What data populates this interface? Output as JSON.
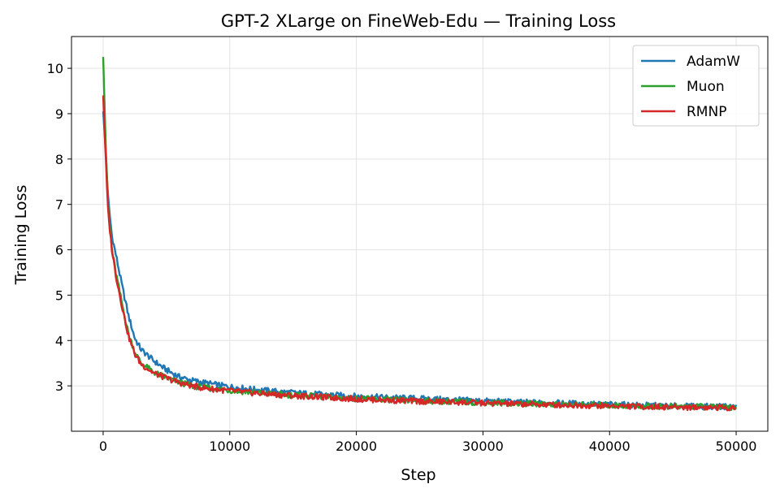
{
  "chart_data": {
    "type": "line",
    "title": "GPT-2 XLarge on FineWeb-Edu — Training Loss",
    "xlabel": "Step",
    "ylabel": "Training Loss",
    "xlim": [
      -2500,
      52500
    ],
    "ylim": [
      2.0,
      10.7
    ],
    "xticks": [
      0,
      10000,
      20000,
      30000,
      40000,
      50000
    ],
    "xtick_labels": [
      "0",
      "10000",
      "20000",
      "30000",
      "40000",
      "50000"
    ],
    "yticks": [
      3,
      4,
      5,
      6,
      7,
      8,
      9,
      10
    ],
    "ytick_labels": [
      "3",
      "4",
      "5",
      "6",
      "7",
      "8",
      "9",
      "10"
    ],
    "grid": true,
    "legend_position": "top-right",
    "series": [
      {
        "name": "AdamW",
        "color": "#1f77b4",
        "x": [
          0,
          200,
          400,
          700,
          1000,
          1500,
          2000,
          2500,
          3000,
          4000,
          5000,
          6000,
          7000,
          8000,
          9000,
          10000,
          12000,
          14000,
          16000,
          18000,
          20000,
          22000,
          25000,
          28000,
          30000,
          33000,
          36000,
          40000,
          43000,
          46000,
          50000
        ],
        "y": [
          9.05,
          8.2,
          7.1,
          6.3,
          5.9,
          5.2,
          4.55,
          4.05,
          3.8,
          3.55,
          3.35,
          3.2,
          3.12,
          3.07,
          3.02,
          2.98,
          2.92,
          2.87,
          2.83,
          2.8,
          2.77,
          2.75,
          2.72,
          2.69,
          2.67,
          2.64,
          2.62,
          2.59,
          2.57,
          2.55,
          2.54
        ]
      },
      {
        "name": "Muon",
        "color": "#2ca02c",
        "x": [
          0,
          200,
          400,
          700,
          1000,
          1500,
          2000,
          2500,
          3000,
          4000,
          5000,
          6000,
          7000,
          8000,
          9000,
          10000,
          12000,
          14000,
          16000,
          18000,
          20000,
          22000,
          25000,
          28000,
          30000,
          33000,
          36000,
          40000,
          43000,
          46000,
          50000
        ],
        "y": [
          10.25,
          8.3,
          6.9,
          6.0,
          5.5,
          4.8,
          4.15,
          3.75,
          3.5,
          3.3,
          3.18,
          3.08,
          3.0,
          2.96,
          2.93,
          2.9,
          2.85,
          2.81,
          2.78,
          2.75,
          2.72,
          2.7,
          2.67,
          2.65,
          2.63,
          2.61,
          2.59,
          2.57,
          2.55,
          2.54,
          2.53
        ]
      },
      {
        "name": "RMNP",
        "color": "#d62728",
        "x": [
          0,
          200,
          400,
          700,
          1000,
          1500,
          2000,
          2500,
          3000,
          4000,
          5000,
          6000,
          7000,
          8000,
          9000,
          10000,
          12000,
          14000,
          16000,
          18000,
          20000,
          22000,
          25000,
          28000,
          30000,
          33000,
          36000,
          40000,
          43000,
          46000,
          50000
        ],
        "y": [
          9.4,
          8.0,
          6.8,
          6.0,
          5.45,
          4.75,
          4.1,
          3.7,
          3.48,
          3.28,
          3.17,
          3.07,
          3.0,
          2.95,
          2.92,
          2.89,
          2.84,
          2.8,
          2.77,
          2.74,
          2.71,
          2.69,
          2.66,
          2.64,
          2.62,
          2.6,
          2.58,
          2.56,
          2.54,
          2.53,
          2.52
        ]
      }
    ]
  }
}
